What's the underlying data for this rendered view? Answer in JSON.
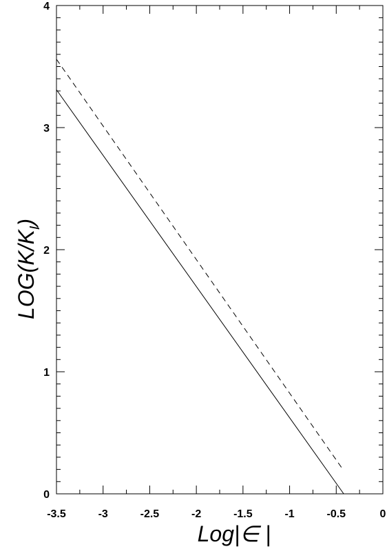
{
  "chart_data": {
    "type": "line",
    "title": "",
    "xlabel": "Log|",
    "xlabel_symbol": "∈",
    "xlabel_end": " |",
    "ylabel": "LOG(K/K",
    "ylabel_sub": "I",
    "ylabel_end": ")",
    "xlim": [
      -3.5,
      0
    ],
    "ylim": [
      0,
      4
    ],
    "xticks": [
      -3.5,
      -3,
      -2.5,
      -2,
      -1.5,
      -1,
      -0.5,
      0
    ],
    "xtick_labels": [
      "-3.5",
      "-3",
      "-2.5",
      "-2",
      "-1.5",
      "-1",
      "-0.5",
      "0"
    ],
    "yticks": [
      0,
      1,
      2,
      3,
      4
    ],
    "ytick_labels": [
      "0",
      "1",
      "2",
      "3",
      "4"
    ],
    "grid": false,
    "series": [
      {
        "style": "solid",
        "color": "#000000",
        "x": [
          -3.5,
          -0.42
        ],
        "y": [
          3.31,
          0.0
        ]
      },
      {
        "style": "dashed",
        "color": "#000000",
        "x": [
          -3.5,
          -0.42
        ],
        "y": [
          3.56,
          0.19
        ]
      }
    ]
  }
}
